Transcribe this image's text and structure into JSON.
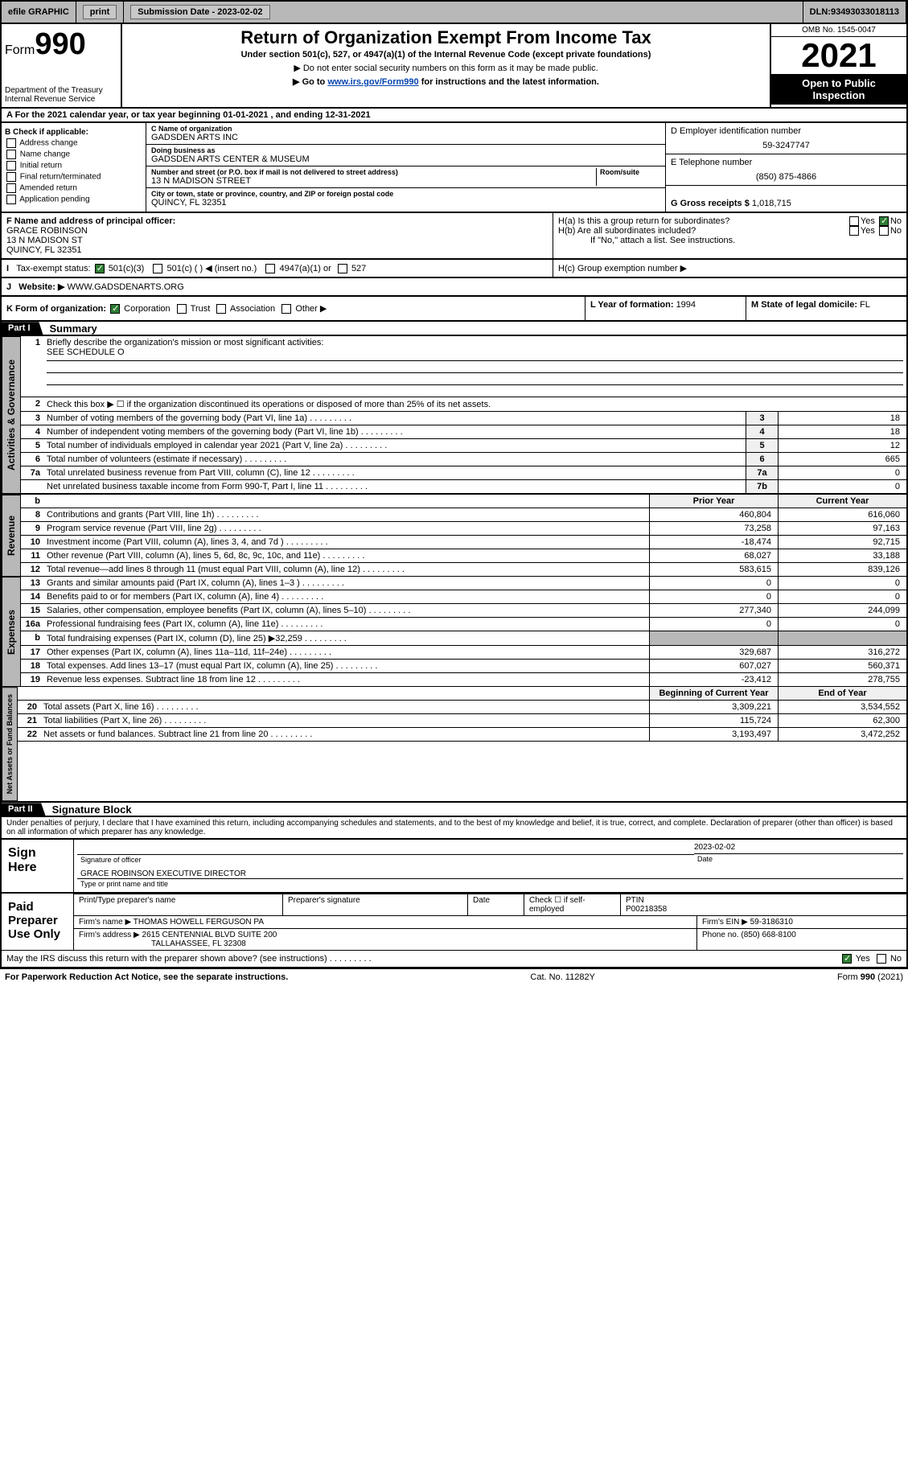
{
  "header": {
    "efile": "efile GRAPHIC",
    "print": "print",
    "submission_label": "Submission Date - ",
    "submission_date": "2023-02-02",
    "dln_label": "DLN: ",
    "dln": "93493033018113"
  },
  "form": {
    "form_label": "Form",
    "form_no": "990",
    "title": "Return of Organization Exempt From Income Tax",
    "subtitle": "Under section 501(c), 527, or 4947(a)(1) of the Internal Revenue Code (except private foundations)",
    "note1": "▶ Do not enter social security numbers on this form as it may be made public.",
    "note2_pre": "▶ Go to ",
    "note2_link": "www.irs.gov/Form990",
    "note2_post": " for instructions and the latest information.",
    "dept": "Department of the Treasury",
    "irs": "Internal Revenue Service",
    "omb": "OMB No. 1545-0047",
    "year": "2021",
    "inspect1": "Open to Public",
    "inspect2": "Inspection"
  },
  "rowA": {
    "text_pre": "A For the 2021 calendar year, or tax year beginning ",
    "begin": "01-01-2021",
    "text_mid": " , and ending ",
    "end": "12-31-2021"
  },
  "colB": {
    "header": "B Check if applicable:",
    "items": [
      "Address change",
      "Name change",
      "Initial return",
      "Final return/terminated",
      "Amended return",
      "Application pending"
    ]
  },
  "colC": {
    "name_label": "C Name of organization",
    "name": "GADSDEN ARTS INC",
    "dba_label": "Doing business as",
    "dba": "GADSDEN ARTS CENTER & MUSEUM",
    "addr_label": "Number and street (or P.O. box if mail is not delivered to street address)",
    "room_label": "Room/suite",
    "addr": "13 N MADISON STREET",
    "city_label": "City or town, state or province, country, and ZIP or foreign postal code",
    "city": "QUINCY, FL  32351"
  },
  "colD": {
    "ein_label": "D Employer identification number",
    "ein": "59-3247747",
    "phone_label": "E Telephone number",
    "phone": "(850) 875-4866",
    "gross_label": "G Gross receipts $ ",
    "gross": "1,018,715"
  },
  "rowF": {
    "label": "F Name and address of principal officer:",
    "name": "GRACE ROBINSON",
    "addr": "13 N MADISON ST",
    "city": "QUINCY, FL  32351"
  },
  "rowH": {
    "ha": "H(a)  Is this a group return for subordinates?",
    "hb": "H(b)  Are all subordinates included?",
    "hbnote": "If \"No,\" attach a list. See instructions.",
    "hc": "H(c)  Group exemption number ▶",
    "yes": "Yes",
    "no": "No"
  },
  "rowI": {
    "label": "Tax-exempt status:",
    "opts": [
      "501(c)(3)",
      "501(c) (  ) ◀ (insert no.)",
      "4947(a)(1) or",
      "527"
    ]
  },
  "rowJ": {
    "label": "Website: ▶ ",
    "val": "WWW.GADSDENARTS.ORG"
  },
  "rowK": {
    "label": "K Form of organization:",
    "opts": [
      "Corporation",
      "Trust",
      "Association",
      "Other ▶"
    ],
    "L": "L Year of formation: ",
    "Lval": "1994",
    "M": "M State of legal domicile: ",
    "Mval": "FL"
  },
  "part1": {
    "header": "Part I",
    "title": "Summary",
    "line1": "Briefly describe the organization's mission or most significant activities:",
    "line1val": "SEE SCHEDULE O",
    "line2": "Check this box ▶ ☐  if the organization discontinued its operations or disposed of more than 25% of its net assets."
  },
  "tabs": {
    "gov": "Activities & Governance",
    "rev": "Revenue",
    "exp": "Expenses",
    "net": "Net Assets or Fund Balances"
  },
  "govRows": [
    {
      "n": "3",
      "d": "Number of voting members of the governing body (Part VI, line 1a)",
      "k": "3",
      "v": "18"
    },
    {
      "n": "4",
      "d": "Number of independent voting members of the governing body (Part VI, line 1b)",
      "k": "4",
      "v": "18"
    },
    {
      "n": "5",
      "d": "Total number of individuals employed in calendar year 2021 (Part V, line 2a)",
      "k": "5",
      "v": "12"
    },
    {
      "n": "6",
      "d": "Total number of volunteers (estimate if necessary)",
      "k": "6",
      "v": "665"
    },
    {
      "n": "7a",
      "d": "Total unrelated business revenue from Part VIII, column (C), line 12",
      "k": "7a",
      "v": "0"
    },
    {
      "n": "",
      "d": "Net unrelated business taxable income from Form 990-T, Part I, line 11",
      "k": "7b",
      "v": "0"
    }
  ],
  "colHdr": {
    "b": "b",
    "prior": "Prior Year",
    "current": "Current Year",
    "begin": "Beginning of Current Year",
    "end": "End of Year"
  },
  "revRows": [
    {
      "n": "8",
      "d": "Contributions and grants (Part VIII, line 1h)",
      "p": "460,804",
      "c": "616,060"
    },
    {
      "n": "9",
      "d": "Program service revenue (Part VIII, line 2g)",
      "p": "73,258",
      "c": "97,163"
    },
    {
      "n": "10",
      "d": "Investment income (Part VIII, column (A), lines 3, 4, and 7d )",
      "p": "-18,474",
      "c": "92,715"
    },
    {
      "n": "11",
      "d": "Other revenue (Part VIII, column (A), lines 5, 6d, 8c, 9c, 10c, and 11e)",
      "p": "68,027",
      "c": "33,188"
    },
    {
      "n": "12",
      "d": "Total revenue—add lines 8 through 11 (must equal Part VIII, column (A), line 12)",
      "p": "583,615",
      "c": "839,126"
    }
  ],
  "expRows": [
    {
      "n": "13",
      "d": "Grants and similar amounts paid (Part IX, column (A), lines 1–3 )",
      "p": "0",
      "c": "0"
    },
    {
      "n": "14",
      "d": "Benefits paid to or for members (Part IX, column (A), line 4)",
      "p": "0",
      "c": "0"
    },
    {
      "n": "15",
      "d": "Salaries, other compensation, employee benefits (Part IX, column (A), lines 5–10)",
      "p": "277,340",
      "c": "244,099"
    },
    {
      "n": "16a",
      "d": "Professional fundraising fees (Part IX, column (A), line 11e)",
      "p": "0",
      "c": "0"
    },
    {
      "n": "b",
      "d": "Total fundraising expenses (Part IX, column (D), line 25) ▶32,259",
      "p": "",
      "c": "",
      "shade": true
    },
    {
      "n": "17",
      "d": "Other expenses (Part IX, column (A), lines 11a–11d, 11f–24e)",
      "p": "329,687",
      "c": "316,272"
    },
    {
      "n": "18",
      "d": "Total expenses. Add lines 13–17 (must equal Part IX, column (A), line 25)",
      "p": "607,027",
      "c": "560,371"
    },
    {
      "n": "19",
      "d": "Revenue less expenses. Subtract line 18 from line 12",
      "p": "-23,412",
      "c": "278,755"
    }
  ],
  "netRows": [
    {
      "n": "20",
      "d": "Total assets (Part X, line 16)",
      "p": "3,309,221",
      "c": "3,534,552"
    },
    {
      "n": "21",
      "d": "Total liabilities (Part X, line 26)",
      "p": "115,724",
      "c": "62,300"
    },
    {
      "n": "22",
      "d": "Net assets or fund balances. Subtract line 21 from line 20",
      "p": "3,193,497",
      "c": "3,472,252"
    }
  ],
  "part2": {
    "header": "Part II",
    "title": "Signature Block",
    "pen": "Under penalties of perjury, I declare that I have examined this return, including accompanying schedules and statements, and to the best of my knowledge and belief, it is true, correct, and complete. Declaration of preparer (other than officer) is based on all information of which preparer has any knowledge."
  },
  "sign": {
    "here": "Sign Here",
    "sig_label": "Signature of officer",
    "date_label": "Date",
    "date": "2023-02-02",
    "name": "GRACE ROBINSON  EXECUTIVE DIRECTOR",
    "name_label": "Type or print name and title"
  },
  "prep": {
    "label": "Paid Preparer Use Only",
    "h1": "Print/Type preparer's name",
    "h2": "Preparer's signature",
    "h3": "Date",
    "h4_pre": "Check ☐ if self-employed",
    "h5": "PTIN",
    "ptin": "P00218358",
    "firm_label": "Firm's name    ▶ ",
    "firm": "THOMAS HOWELL FERGUSON PA",
    "ein_label": "Firm's EIN ▶ ",
    "ein": "59-3186310",
    "addr_label": "Firm's address ▶ ",
    "addr1": "2615 CENTENNIAL BLVD SUITE 200",
    "addr2": "TALLAHASSEE, FL  32308",
    "phone_label": "Phone no. ",
    "phone": "(850) 668-8100"
  },
  "footer": {
    "discuss": "May the IRS discuss this return with the preparer shown above? (see instructions)",
    "paperwork": "For Paperwork Reduction Act Notice, see the separate instructions.",
    "cat": "Cat. No. 11282Y",
    "form": "Form 990 (2021)",
    "yes": "Yes",
    "no": "No"
  }
}
